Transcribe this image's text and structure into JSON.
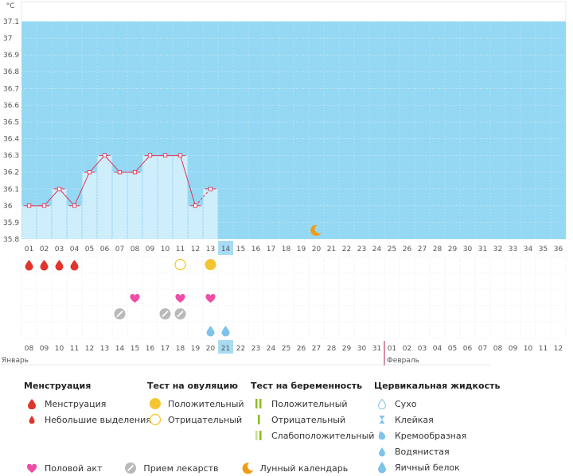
{
  "colors": {
    "plot_bg": "#94d8f3",
    "bar_fill": "#cfeefb",
    "line": "#e0345a",
    "today_bg": "#a8dcf2",
    "blood": "#e0342c",
    "yellow": "#f5c531",
    "pink": "#f04da6",
    "grey": "#b9b9b9",
    "moon": "#f19a16",
    "drop_blue": "#7ec3ea",
    "green": "#8bbc1e",
    "red_date": "#d6173e"
  },
  "chart_data": {
    "type": "line",
    "ylabel": "°C",
    "ylim": [
      35.8,
      37.1
    ],
    "y_ticks": [
      "35.8",
      "35.9",
      "36",
      "36.1",
      "36.2",
      "36.3",
      "36.4",
      "36.5",
      "36.6",
      "36.7",
      "36.8",
      "36.9",
      "37",
      "37.1"
    ],
    "cycle_days": [
      "01",
      "02",
      "03",
      "04",
      "05",
      "06",
      "07",
      "08",
      "09",
      "10",
      "11",
      "12",
      "13",
      "14",
      "15",
      "16",
      "17",
      "18",
      "19",
      "20",
      "21",
      "22",
      "23",
      "24",
      "25",
      "26",
      "27",
      "28",
      "29",
      "30",
      "31",
      "32",
      "33",
      "34",
      "35",
      "36"
    ],
    "today_index": 13,
    "series": [
      {
        "values": [
          36.0,
          36.0,
          36.1,
          36.0,
          36.2,
          36.3,
          36.2,
          36.2,
          36.3,
          36.3,
          36.3,
          36.0,
          36.1
        ]
      }
    ],
    "dashed_last_segment": true,
    "moon_day": "20"
  },
  "calendar": {
    "dates": [
      {
        "d": "08",
        "red": false
      },
      {
        "d": "09",
        "red": false
      },
      {
        "d": "10",
        "red": true
      },
      {
        "d": "11",
        "red": true
      },
      {
        "d": "12",
        "red": false
      },
      {
        "d": "13",
        "red": false
      },
      {
        "d": "14",
        "red": false
      },
      {
        "d": "15",
        "red": false
      },
      {
        "d": "16",
        "red": false
      },
      {
        "d": "17",
        "red": true
      },
      {
        "d": "18",
        "red": true
      },
      {
        "d": "19",
        "red": false
      },
      {
        "d": "20",
        "red": false
      },
      {
        "d": "21",
        "red": false
      },
      {
        "d": "22",
        "red": false
      },
      {
        "d": "23",
        "red": false
      },
      {
        "d": "24",
        "red": true
      },
      {
        "d": "25",
        "red": true
      },
      {
        "d": "26",
        "red": false
      },
      {
        "d": "27",
        "red": false
      },
      {
        "d": "28",
        "red": false
      },
      {
        "d": "29",
        "red": false
      },
      {
        "d": "30",
        "red": false
      },
      {
        "d": "31",
        "red": true
      },
      {
        "d": "01",
        "red": true
      },
      {
        "d": "02",
        "red": false
      },
      {
        "d": "03",
        "red": false
      },
      {
        "d": "04",
        "red": false
      },
      {
        "d": "05",
        "red": false
      },
      {
        "d": "06",
        "red": false
      },
      {
        "d": "07",
        "red": true
      },
      {
        "d": "08",
        "red": true
      },
      {
        "d": "09",
        "red": false
      },
      {
        "d": "10",
        "red": false
      },
      {
        "d": "11",
        "red": false
      },
      {
        "d": "12",
        "red": false
      }
    ],
    "month_start": "Январь",
    "month_next": "Февраль",
    "month_break_index": 24
  },
  "markers": {
    "menstruation_days": [
      0,
      1,
      2,
      3
    ],
    "ovulation_negative_day": 10,
    "ovulation_positive_day": 12,
    "intercourse_days": [
      7,
      10,
      12
    ],
    "medication_days": [
      6,
      9,
      10
    ],
    "fluid_days": [
      12,
      13
    ]
  },
  "legend": {
    "menstr_title": "Менструация",
    "menstr_items": [
      "Менструация",
      "Небольшие выделения"
    ],
    "ovul_title": "Тест на овуляцию",
    "ovul_items": [
      "Положительный",
      "Отрицательный"
    ],
    "preg_title": "Тест на беременность",
    "preg_items": [
      "Положительный",
      "Отрицательный",
      "Слабоположительный"
    ],
    "fluid_title": "Цервикальная жидкость",
    "fluid_items": [
      "Сухо",
      "Клейкая",
      "Кремообразная",
      "Водянистая",
      "Яичный белок"
    ],
    "other_items": [
      "Половой акт",
      "Прием лекарств",
      "Лунный календарь"
    ]
  }
}
